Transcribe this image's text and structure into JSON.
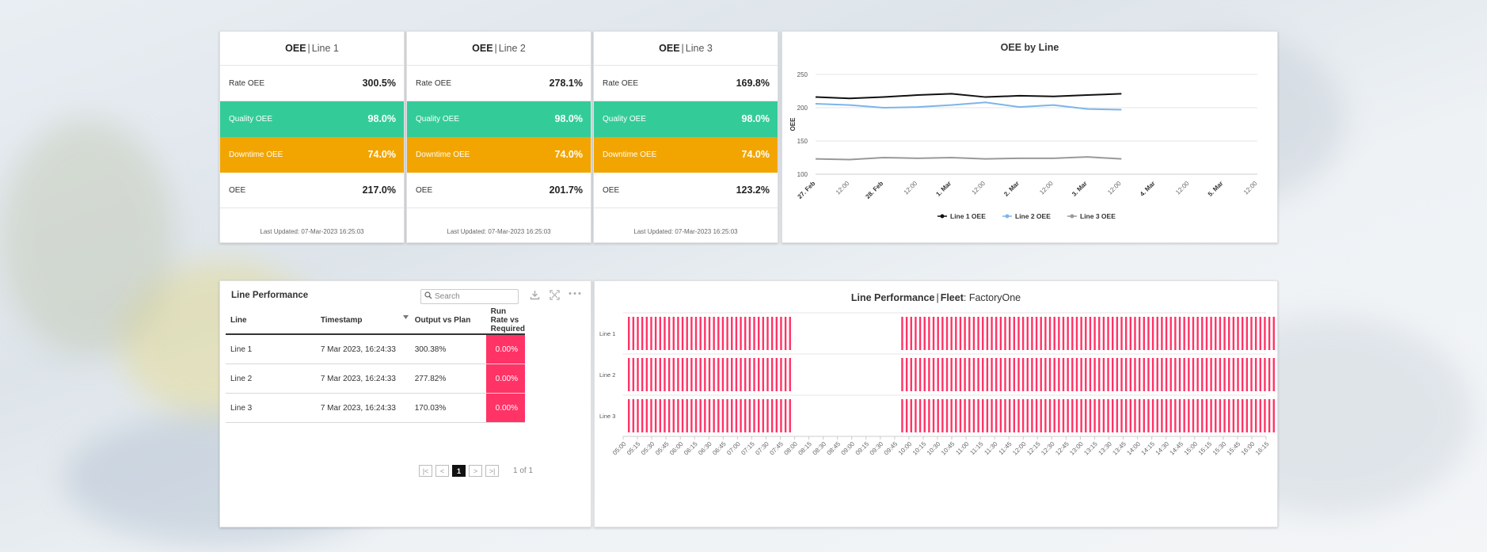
{
  "oee_cards": [
    {
      "title_bold": "OEE",
      "separator": "|",
      "line": "Line 1",
      "rows": [
        {
          "label": "Rate OEE",
          "value": "300.5%"
        },
        {
          "label": "Quality OEE",
          "value": "98.0%"
        },
        {
          "label": "Downtime OEE",
          "value": "74.0%"
        },
        {
          "label": "OEE",
          "value": "217.0%"
        }
      ],
      "footer": "Last Updated: 07-Mar-2023 16:25:03"
    },
    {
      "title_bold": "OEE",
      "separator": "|",
      "line": "Line 2",
      "rows": [
        {
          "label": "Rate OEE",
          "value": "278.1%"
        },
        {
          "label": "Quality OEE",
          "value": "98.0%"
        },
        {
          "label": "Downtime OEE",
          "value": "74.0%"
        },
        {
          "label": "OEE",
          "value": "201.7%"
        }
      ],
      "footer": "Last Updated: 07-Mar-2023 16:25:03"
    },
    {
      "title_bold": "OEE",
      "separator": "|",
      "line": "Line 3",
      "rows": [
        {
          "label": "Rate OEE",
          "value": "169.8%"
        },
        {
          "label": "Quality OEE",
          "value": "98.0%"
        },
        {
          "label": "Downtime OEE",
          "value": "74.0%"
        },
        {
          "label": "OEE",
          "value": "123.2%"
        }
      ],
      "footer": "Last Updated: 07-Mar-2023 16:25:03"
    }
  ],
  "colors": {
    "quality": "#33cc99",
    "downtime": "#f2a500",
    "alert": "#ff3366",
    "line1": "#111111",
    "line2": "#7cb5ec",
    "line3": "#999999"
  },
  "chart_data": [
    {
      "type": "line",
      "title": "OEE by Line",
      "ylabel": "OEE",
      "ylim": [
        100,
        250
      ],
      "yticks": [
        100,
        150,
        200,
        250
      ],
      "xticks": [
        "27. Feb",
        "12:00",
        "28. Feb",
        "12:00",
        "1. Mar",
        "12:00",
        "2. Mar",
        "12:00",
        "3. Mar",
        "12:00",
        "4. Mar",
        "12:00",
        "5. Mar",
        "12:00"
      ],
      "x_days": [
        0,
        0.25,
        0.5,
        0.75,
        1,
        1.25,
        1.5,
        1.75,
        2,
        2.25,
        2.5,
        2.75,
        3,
        3.25,
        3.5,
        3.75,
        4,
        4.25
      ],
      "series": [
        {
          "name": "Line 1 OEE",
          "values": [
            216,
            214,
            216,
            219,
            221,
            216,
            218,
            217,
            219,
            221
          ],
          "x_days": [
            0,
            0.5,
            1,
            1.5,
            2,
            2.5,
            3,
            3.5,
            4,
            4.5
          ]
        },
        {
          "name": "Line 2 OEE",
          "values": [
            206,
            204,
            200,
            201,
            204,
            208,
            201,
            204,
            198,
            197
          ],
          "x_days": [
            0,
            0.5,
            1,
            1.5,
            2,
            2.5,
            3,
            3.5,
            4,
            4.5
          ]
        },
        {
          "name": "Line 3 OEE",
          "values": [
            123,
            122,
            125,
            124,
            125,
            123,
            124,
            124,
            126,
            123
          ],
          "x_days": [
            0,
            0.5,
            1,
            1.5,
            2,
            2.5,
            3,
            3.5,
            4,
            4.5
          ]
        }
      ]
    },
    {
      "type": "timeline",
      "title_bold": "Line Performance",
      "separator": "|",
      "fleet_label": "Fleet",
      "fleet_value": "FactoryOne",
      "rows": [
        "Line 1",
        "Line 2",
        "Line 3"
      ],
      "xticks": [
        "05:00",
        "05:15",
        "05:30",
        "05:45",
        "06:00",
        "06:15",
        "06:30",
        "06:45",
        "07:00",
        "07:15",
        "07:30",
        "07:45",
        "08:00",
        "08:15",
        "08:30",
        "08:45",
        "09:00",
        "09:15",
        "09:30",
        "09:45",
        "10:00",
        "10:15",
        "10:30",
        "10:45",
        "11:00",
        "11:15",
        "11:30",
        "11:45",
        "12:00",
        "12:15",
        "12:30",
        "12:45",
        "13:00",
        "13:15",
        "13:30",
        "13:45",
        "14:00",
        "14:15",
        "14:30",
        "14:45",
        "15:00",
        "15:15",
        "15:30",
        "15:45",
        "16:00",
        "16:15"
      ],
      "segments_minutes": [
        [
          5,
          178
        ],
        [
          292,
          850
        ]
      ],
      "segment_minutes_note": "minutes after 05:00"
    }
  ],
  "table": {
    "title": "Line Performance",
    "search_placeholder": "Search",
    "columns": [
      "Line",
      "Timestamp",
      "Output vs Plan",
      "Run Rate vs Required"
    ],
    "rows": [
      {
        "line": "Line 1",
        "timestamp": "7 Mar 2023, 16:24:33",
        "output": "300.38%",
        "runrate": "0.00%"
      },
      {
        "line": "Line 2",
        "timestamp": "7 Mar 2023, 16:24:33",
        "output": "277.82%",
        "runrate": "0.00%"
      },
      {
        "line": "Line 3",
        "timestamp": "7 Mar 2023, 16:24:33",
        "output": "170.03%",
        "runrate": "0.00%"
      }
    ],
    "pager": {
      "first": "|<",
      "prev": "<",
      "page": "1",
      "next": ">",
      "last": ">|",
      "summary": "1 of 1"
    }
  }
}
